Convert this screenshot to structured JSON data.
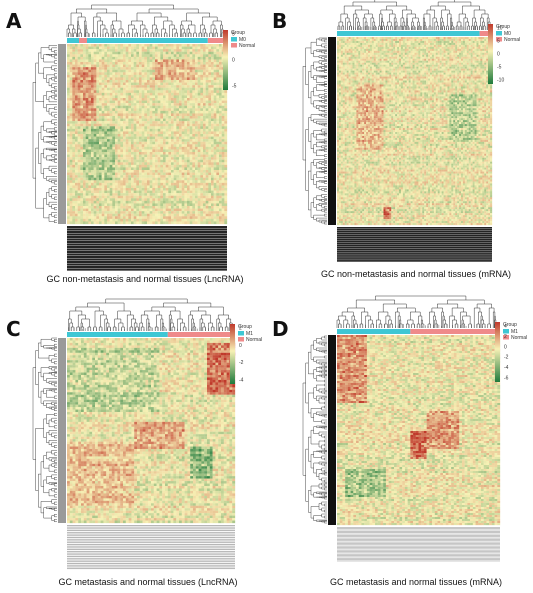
{
  "figure": {
    "panels": [
      {
        "letter": "A",
        "caption": "GC non-metastasis and normal tissues (LncRNA)",
        "legend_title": "Group",
        "group_labels": [
          "M0",
          "Normal"
        ],
        "group_colors": [
          "#3ec7d4",
          "#ef8a8a"
        ],
        "scale_ticks": [
          "5",
          "0",
          "-5"
        ]
      },
      {
        "letter": "B",
        "caption": "GC non-metastasis and normal tissues (mRNA)",
        "legend_title": "Group",
        "group_labels": [
          "M0",
          "Normal"
        ],
        "group_colors": [
          "#3ec7d4",
          "#ef8a8a"
        ],
        "scale_ticks": [
          "10",
          "5",
          "0",
          "-5",
          "-10"
        ]
      },
      {
        "letter": "C",
        "caption": "GC metastasis and normal tissues (LncRNA)",
        "legend_title": "Group",
        "group_labels": [
          "M1",
          "Normal"
        ],
        "group_colors": [
          "#3ec7d4",
          "#ef8a8a"
        ],
        "scale_ticks": [
          "2",
          "0",
          "-2",
          "-4"
        ]
      },
      {
        "letter": "D",
        "caption": "GC metastasis and normal tissues (mRNA)",
        "legend_title": "Group",
        "group_labels": [
          "M1",
          "Normal"
        ],
        "group_colors": [
          "#3ec7d4",
          "#ef8a8a"
        ],
        "scale_ticks": [
          "4",
          "2",
          "0",
          "-2",
          "-4",
          "-6"
        ]
      }
    ],
    "colors": {
      "high": "#c0392b",
      "mid": "#f7f1b5",
      "low": "#1e7a3c"
    }
  },
  "chart_data": [
    {
      "type": "heatmap",
      "title": "GC non-metastasis and normal tissues (LncRNA)",
      "colorbar_range": [
        -5,
        5
      ],
      "column_groups": [
        "M0",
        "Normal"
      ]
    },
    {
      "type": "heatmap",
      "title": "GC non-metastasis and normal tissues (mRNA)",
      "colorbar_range": [
        -10,
        10
      ],
      "column_groups": [
        "M0",
        "Normal"
      ]
    },
    {
      "type": "heatmap",
      "title": "GC metastasis and normal tissues (LncRNA)",
      "colorbar_range": [
        -4,
        2
      ],
      "column_groups": [
        "M1",
        "Normal"
      ]
    },
    {
      "type": "heatmap",
      "title": "GC metastasis and normal tissues (mRNA)",
      "colorbar_range": [
        -6,
        4
      ],
      "column_groups": [
        "M1",
        "Normal"
      ]
    }
  ]
}
